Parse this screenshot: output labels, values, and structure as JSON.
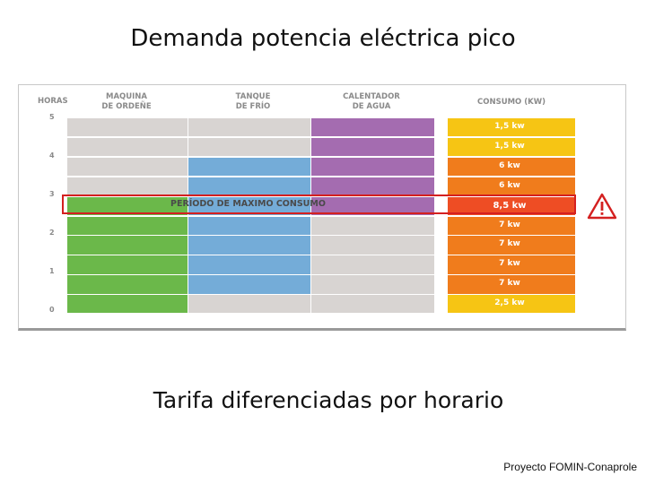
{
  "title": "Demanda potencia eléctrica pico",
  "subtitle": "Tarifa diferenciadas por horario",
  "footer": "Proyecto FOMIN-Conaprole",
  "figure": {
    "headers": {
      "horas": "HORAS",
      "maquina": "MAQUINA\nDE ORDEÑE",
      "tanque": "TANQUE\nDE FRÍO",
      "calentador": "CALENTADOR\nDE AGUA",
      "consumo": "CONSUMO (KW)"
    },
    "hour_labels": [
      "5",
      "4",
      "3",
      "2",
      "1",
      "0"
    ],
    "peak_label": "PERÍODO DE MAXIMO CONSUMO",
    "rows": [
      {
        "maquina": "off",
        "tanque": "off",
        "calentador": "on",
        "consumo": "1,5 kw",
        "level": "yellow"
      },
      {
        "maquina": "off",
        "tanque": "off",
        "calentador": "on",
        "consumo": "1,5 kw",
        "level": "yellow"
      },
      {
        "maquina": "off",
        "tanque": "on",
        "calentador": "on",
        "consumo": "6 kw",
        "level": "orange"
      },
      {
        "maquina": "off",
        "tanque": "on",
        "calentador": "on",
        "consumo": "6 kw",
        "level": "orange"
      },
      {
        "maquina": "on",
        "tanque": "on",
        "calentador": "on",
        "consumo": "8,5 kw",
        "level": "red"
      },
      {
        "maquina": "on",
        "tanque": "on",
        "calentador": "off",
        "consumo": "7 kw",
        "level": "orange"
      },
      {
        "maquina": "on",
        "tanque": "on",
        "calentador": "off",
        "consumo": "7 kw",
        "level": "orange"
      },
      {
        "maquina": "on",
        "tanque": "on",
        "calentador": "off",
        "consumo": "7 kw",
        "level": "orange"
      },
      {
        "maquina": "on",
        "tanque": "on",
        "calentador": "off",
        "consumo": "7 kw",
        "level": "orange"
      },
      {
        "maquina": "on",
        "tanque": "off",
        "calentador": "off",
        "consumo": "2,5 kw",
        "level": "yellow"
      }
    ],
    "colors": {
      "maquina_on": "#6bb84a",
      "tanque_on": "#74acd8",
      "calentador_on": "#a46cb0",
      "off": "#d8d4d2",
      "yellow": "#f6c514",
      "orange": "#f07c1c",
      "red": "#ee4d24",
      "peak_border": "#d42020"
    },
    "warning_icon": "warning-triangle-icon"
  }
}
